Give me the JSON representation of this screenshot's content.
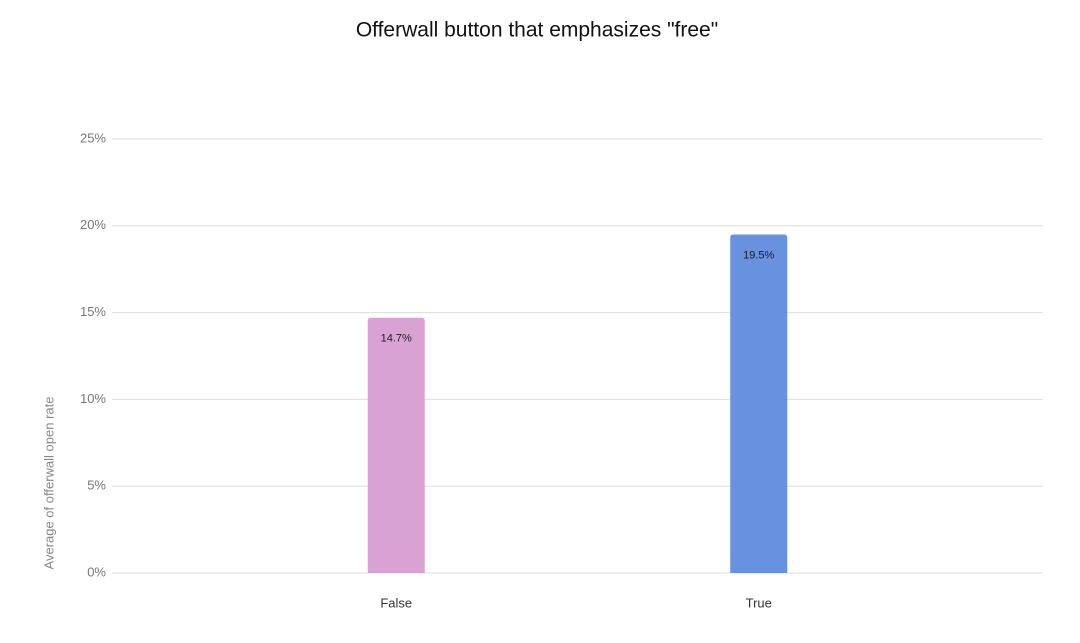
{
  "chart_data": {
    "type": "bar",
    "title": "Offerwall button that emphasizes \"free\"",
    "y_label": "Average of offerwall open rate",
    "categories": [
      "False",
      "True"
    ],
    "values": [
      14.7,
      19.5
    ],
    "value_labels": [
      "14.7%",
      "19.5%"
    ],
    "colors": [
      "#d8a3d4",
      "#6891e0"
    ],
    "ylim": [
      0,
      25
    ],
    "yticks": [
      {
        "value": 0,
        "label": "0%"
      },
      {
        "value": 5,
        "label": "5%"
      },
      {
        "value": 10,
        "label": "10%"
      },
      {
        "value": 15,
        "label": "15%"
      },
      {
        "value": 20,
        "label": "20%"
      },
      {
        "value": 25,
        "label": "25%"
      }
    ],
    "grid": true
  }
}
